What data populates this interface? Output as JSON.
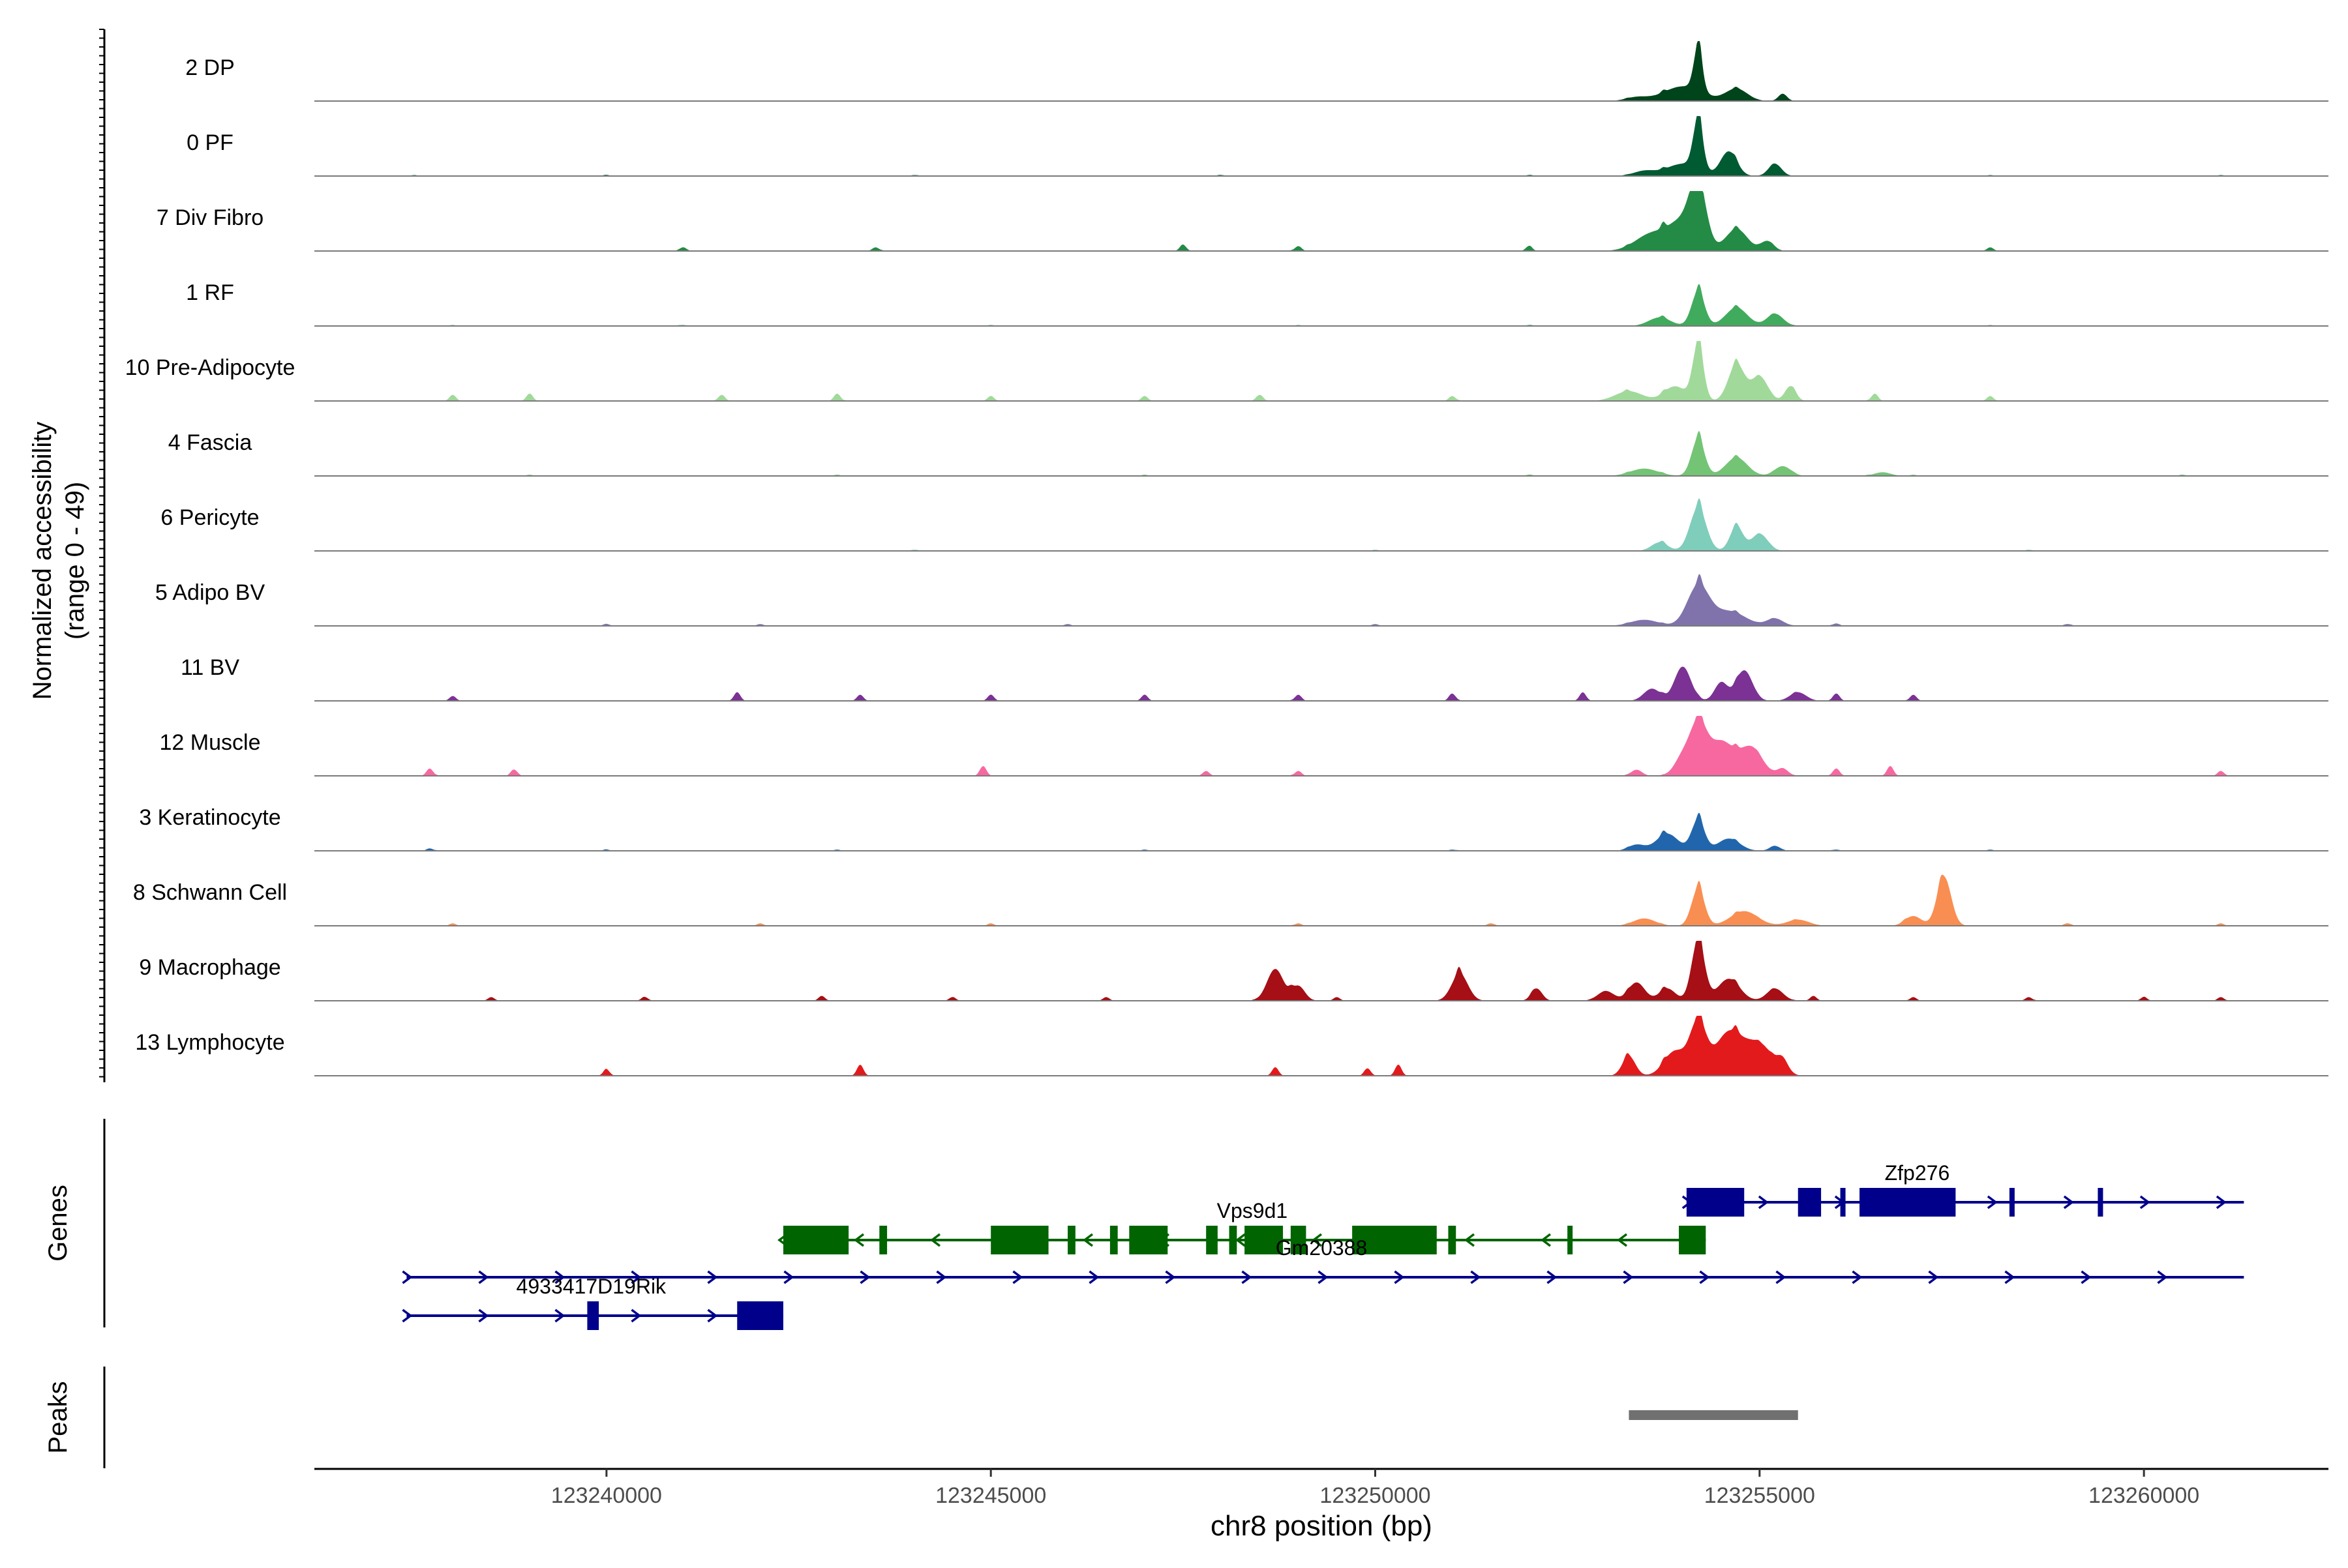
{
  "chart_data": {
    "type": "area",
    "figure_type": "coverage track plot",
    "ylabel_lines": [
      "Normalized accessibility",
      "(range 0 - 49)"
    ],
    "y_range": [
      0,
      49
    ],
    "xlabel": "chr8 position (bp)",
    "xlim": [
      123236200,
      123262400
    ],
    "x_ticks": [
      123240000,
      123245000,
      123250000,
      123255000,
      123260000
    ],
    "panel_labels": {
      "genes": "Genes",
      "peaks": "Peaks"
    },
    "tracks": [
      {
        "name": "2 DP",
        "color": "#00441b",
        "background": [
          [
            123238000,
            0.4
          ],
          [
            123240000,
            0.3
          ],
          [
            123244000,
            0.3
          ],
          [
            123247000,
            0.3
          ]
        ],
        "peaks": [
          [
            123253400,
            3,
            200
          ],
          [
            123254000,
            12,
            350
          ],
          [
            123254200,
            35,
            80
          ],
          [
            123254700,
            10,
            200
          ],
          [
            123255300,
            6,
            80
          ]
        ]
      },
      {
        "name": "0 PF",
        "color": "#005a32",
        "background": [
          [
            123237500,
            0.8
          ],
          [
            123240000,
            0.8
          ],
          [
            123244000,
            0.8
          ],
          [
            123248000,
            0.8
          ],
          [
            123252000,
            0.8
          ],
          [
            123258000,
            0.8
          ],
          [
            123261000,
            0.8
          ]
        ],
        "peaks": [
          [
            123253500,
            4,
            200
          ],
          [
            123254000,
            10,
            300
          ],
          [
            123254200,
            40,
            90
          ],
          [
            123254600,
            20,
            150
          ],
          [
            123255200,
            10,
            120
          ]
        ]
      },
      {
        "name": "7 Div Fibro",
        "color": "#238b45",
        "background": [
          [
            123241000,
            3
          ],
          [
            123243500,
            3
          ],
          [
            123247500,
            5
          ],
          [
            123249000,
            4
          ],
          [
            123252000,
            4
          ],
          [
            123258000,
            3
          ]
        ],
        "peaks": [
          [
            123253600,
            14,
            300
          ],
          [
            123254000,
            22,
            250
          ],
          [
            123254200,
            49,
            150
          ],
          [
            123254700,
            18,
            200
          ],
          [
            123255100,
            8,
            120
          ]
        ]
      },
      {
        "name": "1 RF",
        "color": "#41ab5d",
        "background": [
          [
            123238000,
            0.8
          ],
          [
            123241000,
            0.8
          ],
          [
            123245000,
            0.8
          ],
          [
            123249000,
            0.8
          ],
          [
            123252000,
            0.8
          ],
          [
            123258000,
            0.8
          ]
        ],
        "peaks": [
          [
            123253700,
            7,
            200
          ],
          [
            123254200,
            28,
            120
          ],
          [
            123254700,
            15,
            200
          ],
          [
            123255200,
            10,
            150
          ]
        ]
      },
      {
        "name": "10 Pre-Adipocyte",
        "color": "#a1d99b",
        "background": [
          [
            123238000,
            5
          ],
          [
            123239000,
            6
          ],
          [
            123241500,
            5
          ],
          [
            123243000,
            6
          ],
          [
            123245000,
            4
          ],
          [
            123247000,
            4
          ],
          [
            123248500,
            5
          ],
          [
            123251000,
            4
          ],
          [
            123256500,
            6
          ],
          [
            123258000,
            4
          ]
        ],
        "peaks": [
          [
            123253300,
            8,
            250
          ],
          [
            123253900,
            12,
            200
          ],
          [
            123254200,
            45,
            100
          ],
          [
            123254700,
            30,
            150
          ],
          [
            123255000,
            20,
            150
          ],
          [
            123255400,
            12,
            100
          ]
        ]
      },
      {
        "name": "4 Fascia",
        "color": "#74c476",
        "background": [
          [
            123239000,
            1
          ],
          [
            123243000,
            1
          ],
          [
            123247000,
            1
          ],
          [
            123252000,
            1
          ],
          [
            123257000,
            1
          ],
          [
            123260500,
            1
          ]
        ],
        "peaks": [
          [
            123253500,
            6,
            250
          ],
          [
            123254200,
            30,
            120
          ],
          [
            123254700,
            15,
            200
          ],
          [
            123255300,
            8,
            150
          ],
          [
            123256600,
            3,
            150
          ]
        ]
      },
      {
        "name": "6 Pericyte",
        "color": "#7fcdbb",
        "background": [
          [
            123244000,
            1
          ],
          [
            123250000,
            1
          ],
          [
            123258500,
            1
          ]
        ],
        "peaks": [
          [
            123253700,
            7,
            150
          ],
          [
            123254200,
            35,
            150
          ],
          [
            123254700,
            20,
            120
          ],
          [
            123255000,
            14,
            150
          ]
        ]
      },
      {
        "name": "5 Adipo BV",
        "color": "#8073ac",
        "background": [
          [
            123240000,
            1.5
          ],
          [
            123242000,
            1.5
          ],
          [
            123246000,
            1.5
          ],
          [
            123250000,
            1.5
          ],
          [
            123256000,
            2
          ],
          [
            123259000,
            1.5
          ]
        ],
        "peaks": [
          [
            123253500,
            5,
            250
          ],
          [
            123254200,
            32,
            200
          ],
          [
            123254600,
            12,
            300
          ],
          [
            123255200,
            6,
            150
          ]
        ]
      },
      {
        "name": "11 BV",
        "color": "#7b3294",
        "background": [
          [
            123238000,
            4
          ],
          [
            123241700,
            7
          ],
          [
            123243300,
            5
          ],
          [
            123245000,
            5
          ],
          [
            123247000,
            5
          ],
          [
            123249000,
            5
          ],
          [
            123251000,
            6
          ],
          [
            123252700,
            7
          ],
          [
            123256000,
            6
          ],
          [
            123257000,
            5
          ]
        ],
        "peaks": [
          [
            123253600,
            10,
            150
          ],
          [
            123254000,
            28,
            150
          ],
          [
            123254500,
            15,
            120
          ],
          [
            123254800,
            25,
            150
          ],
          [
            123255500,
            7,
            150
          ]
        ]
      },
      {
        "name": "12 Muscle",
        "color": "#f768a1",
        "background": [
          [
            123237700,
            6
          ],
          [
            123238800,
            5
          ],
          [
            123244900,
            8
          ],
          [
            123247800,
            4
          ],
          [
            123249000,
            4
          ],
          [
            123256000,
            6
          ],
          [
            123256700,
            8
          ],
          [
            123261000,
            4
          ]
        ],
        "peaks": [
          [
            123253400,
            5,
            100
          ],
          [
            123254000,
            15,
            150
          ],
          [
            123254200,
            38,
            150
          ],
          [
            123254500,
            28,
            250
          ],
          [
            123254900,
            22,
            200
          ],
          [
            123255300,
            6,
            100
          ]
        ]
      },
      {
        "name": "3 Keratinocyte",
        "color": "#2166ac",
        "background": [
          [
            123237700,
            2
          ],
          [
            123240000,
            1
          ],
          [
            123243000,
            1
          ],
          [
            123247000,
            1
          ],
          [
            123251000,
            1
          ],
          [
            123256000,
            1
          ],
          [
            123258000,
            1
          ]
        ],
        "peaks": [
          [
            123253400,
            5,
            150
          ],
          [
            123253800,
            14,
            200
          ],
          [
            123254200,
            25,
            120
          ],
          [
            123254600,
            10,
            200
          ],
          [
            123255200,
            4,
            100
          ]
        ]
      },
      {
        "name": "8 Schwann Cell",
        "color": "#f98e52",
        "background": [
          [
            123238000,
            2
          ],
          [
            123242000,
            2
          ],
          [
            123245000,
            2
          ],
          [
            123249000,
            2
          ],
          [
            123251500,
            2
          ],
          [
            123259000,
            2
          ],
          [
            123261000,
            2
          ]
        ],
        "peaks": [
          [
            123253500,
            6,
            200
          ],
          [
            123254200,
            30,
            120
          ],
          [
            123254800,
            12,
            250
          ],
          [
            123255500,
            5,
            200
          ],
          [
            123257000,
            8,
            150
          ],
          [
            123257400,
            40,
            130
          ]
        ]
      },
      {
        "name": "9 Macrophage",
        "color": "#a50f15",
        "background": [
          [
            123238500,
            3
          ],
          [
            123240500,
            3
          ],
          [
            123242800,
            4
          ],
          [
            123244500,
            3
          ],
          [
            123246500,
            3
          ],
          [
            123249500,
            3
          ],
          [
            123255700,
            4
          ],
          [
            123257000,
            3
          ],
          [
            123258500,
            3
          ],
          [
            123260000,
            3
          ],
          [
            123261000,
            3
          ]
        ],
        "peaks": [
          [
            123248700,
            26,
            150
          ],
          [
            123249000,
            12,
            120
          ],
          [
            123251100,
            22,
            150
          ],
          [
            123252100,
            10,
            100
          ],
          [
            123253000,
            8,
            150
          ],
          [
            123253400,
            15,
            150
          ],
          [
            123253800,
            10,
            150
          ],
          [
            123254200,
            49,
            120
          ],
          [
            123254600,
            18,
            200
          ],
          [
            123255200,
            10,
            150
          ]
        ]
      },
      {
        "name": "13 Lymphocyte",
        "color": "#e31a1c",
        "background": [
          [
            123240000,
            5
          ],
          [
            123243300,
            9
          ],
          [
            123248700,
            7
          ],
          [
            123249900,
            6
          ],
          [
            123250300,
            9
          ]
        ],
        "peaks": [
          [
            123253300,
            16,
            120
          ],
          [
            123253900,
            20,
            200
          ],
          [
            123254200,
            42,
            150
          ],
          [
            123254600,
            35,
            250
          ],
          [
            123255000,
            25,
            250
          ],
          [
            123255300,
            10,
            100
          ]
        ]
      }
    ],
    "genes": [
      {
        "name": "Zfp276",
        "strand": "+",
        "color": "#00008b",
        "start": 123254050,
        "end": 123261300,
        "exons": [
          [
            123254050,
            123254800
          ],
          [
            123255500,
            123255800
          ],
          [
            123256050,
            123256100
          ],
          [
            123256300,
            123257550
          ],
          [
            123258250,
            123258300
          ],
          [
            123259400,
            123259450
          ]
        ]
      },
      {
        "name": "Vps9d1",
        "strand": "-",
        "color": "#006400",
        "start": 123242300,
        "end": 123254300,
        "exons": [
          [
            123242300,
            123243150
          ],
          [
            123243550,
            123243650
          ],
          [
            123245000,
            123245750
          ],
          [
            123246000,
            123246100
          ],
          [
            123246550,
            123246650
          ],
          [
            123246800,
            123247300
          ],
          [
            123247800,
            123247950
          ],
          [
            123248100,
            123248200
          ],
          [
            123248300,
            123248800
          ],
          [
            123248900,
            123249100
          ],
          [
            123249700,
            123250800
          ],
          [
            123250950,
            123251050
          ],
          [
            123252500,
            123252550
          ],
          [
            123253950,
            123254300
          ]
        ]
      },
      {
        "name": "Gm20388",
        "strand": "+",
        "color": "#00008b",
        "start": 123237400,
        "end": 123261300,
        "exons": []
      },
      {
        "name": "4933417D19Rik",
        "strand": "+",
        "color": "#00008b",
        "start": 123237400,
        "end": 123242300,
        "exons": [
          [
            123239750,
            123239900
          ],
          [
            123241700,
            123242300
          ]
        ]
      }
    ],
    "peaks": [
      {
        "start": 123253300,
        "end": 123255500,
        "color": "#707070"
      }
    ]
  }
}
